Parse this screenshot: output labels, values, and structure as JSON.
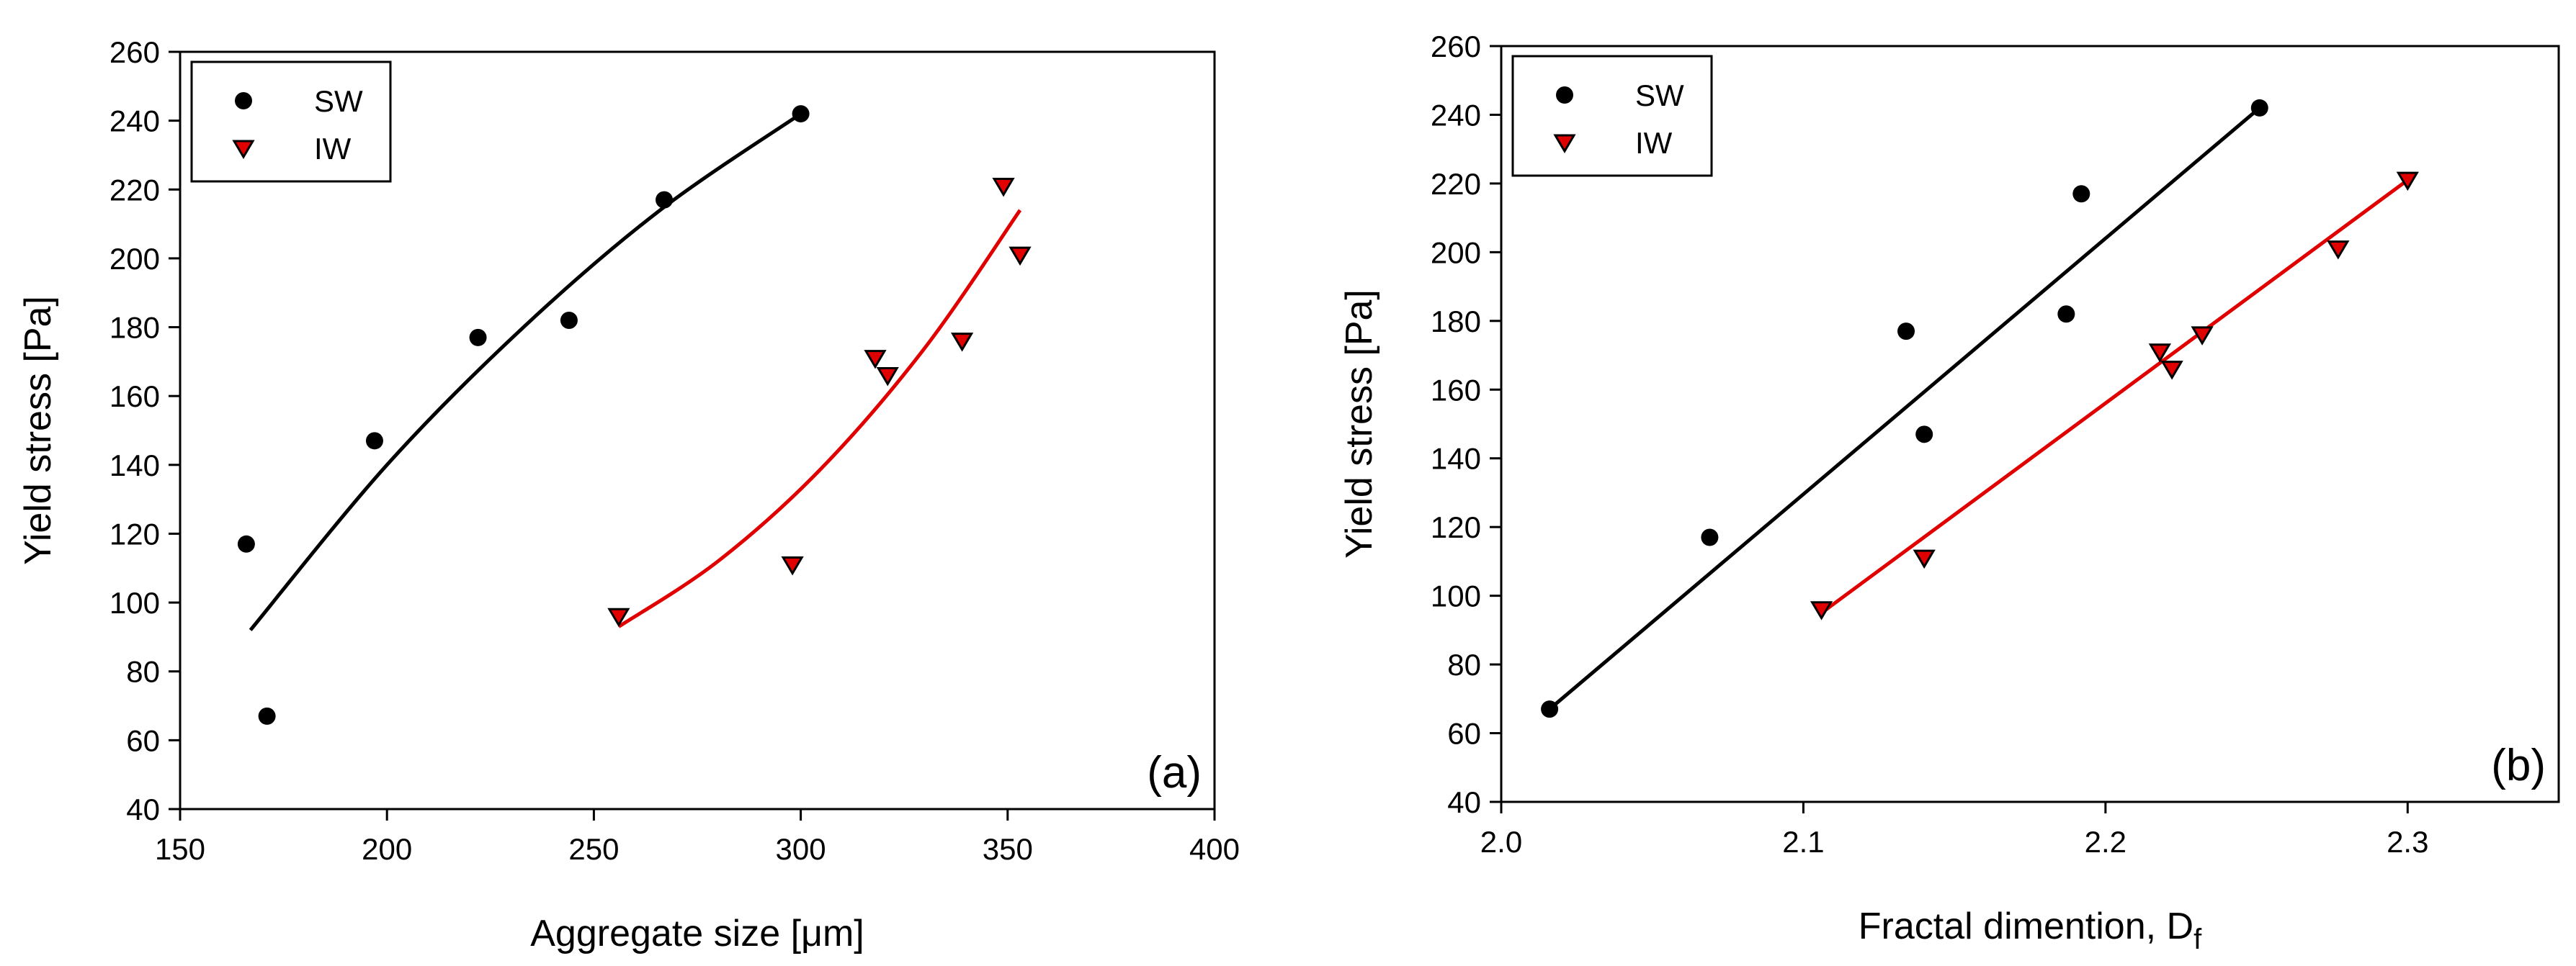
{
  "chart_data": [
    {
      "type": "scatter",
      "panel_label": "(a)",
      "xlabel": "Aggregate size [",
      "xlabel_unit": "μm",
      "xlabel_close": "]",
      "ylabel": "Yield stress [Pa]",
      "xlim": [
        150,
        400
      ],
      "ylim": [
        40,
        260
      ],
      "xticks": [
        "150",
        "200",
        "250",
        "300",
        "350",
        "400"
      ],
      "xtick_values": [
        150,
        200,
        250,
        300,
        350,
        400
      ],
      "yticks": [
        "40",
        "60",
        "80",
        "100",
        "120",
        "140",
        "160",
        "180",
        "200",
        "220",
        "240",
        "260"
      ],
      "ytick_values": [
        40,
        60,
        80,
        100,
        120,
        140,
        160,
        180,
        200,
        220,
        240,
        260
      ],
      "legend": [
        "SW",
        "IW"
      ],
      "legend_position": "top-left",
      "series": [
        {
          "name": "SW",
          "marker": "circle",
          "color": "#000000",
          "x": [
            166,
            171,
            197,
            222,
            244,
            267,
            300
          ],
          "y": [
            117,
            67,
            147,
            177,
            182,
            217,
            242
          ],
          "fit": {
            "type": "quadratic",
            "x": [
              167,
              200,
              233,
              266,
              300
            ],
            "y": [
              92,
              140,
              180,
              214,
              242
            ]
          }
        },
        {
          "name": "IW",
          "marker": "triangle-down",
          "color": "#e00000",
          "x": [
            256,
            298,
            318,
            321,
            339,
            349,
            353
          ],
          "y": [
            96,
            111,
            171,
            166,
            176,
            221,
            201
          ],
          "fit": {
            "type": "quadratic",
            "x": [
              256,
              280,
              305,
              330,
              353
            ],
            "y": [
              93,
              112,
              139,
              174,
              214
            ]
          }
        }
      ]
    },
    {
      "type": "scatter",
      "panel_label": "(b)",
      "xlabel": "Fractal dimention, D",
      "xlabel_sub": "f",
      "ylabel": "Yield stress [Pa]",
      "xlim": [
        2.0,
        2.35
      ],
      "ylim": [
        40,
        260
      ],
      "xticks": [
        "2.0",
        "2.1",
        "2.2",
        "2.3"
      ],
      "xtick_values": [
        2.0,
        2.1,
        2.2,
        2.3
      ],
      "yticks": [
        "40",
        "60",
        "80",
        "100",
        "120",
        "140",
        "160",
        "180",
        "200",
        "220",
        "240",
        "260"
      ],
      "ytick_values": [
        40,
        60,
        80,
        100,
        120,
        140,
        160,
        180,
        200,
        220,
        240,
        260
      ],
      "legend": [
        "SW",
        "IW"
      ],
      "legend_position": "top-left",
      "series": [
        {
          "name": "SW",
          "marker": "circle",
          "color": "#000000",
          "x": [
            2.016,
            2.069,
            2.134,
            2.14,
            2.187,
            2.192,
            2.251
          ],
          "y": [
            67,
            117,
            177,
            147,
            182,
            217,
            242
          ],
          "fit": {
            "type": "linear",
            "x": [
              2.016,
              2.251
            ],
            "y": [
              67,
              242
            ]
          }
        },
        {
          "name": "IW",
          "marker": "triangle-down",
          "color": "#e00000",
          "x": [
            2.106,
            2.14,
            2.218,
            2.222,
            2.232,
            2.277,
            2.3
          ],
          "y": [
            96,
            111,
            171,
            166,
            176,
            201,
            221
          ],
          "fit": {
            "type": "linear",
            "x": [
              2.106,
              2.3
            ],
            "y": [
              95,
              221
            ]
          }
        }
      ]
    }
  ]
}
